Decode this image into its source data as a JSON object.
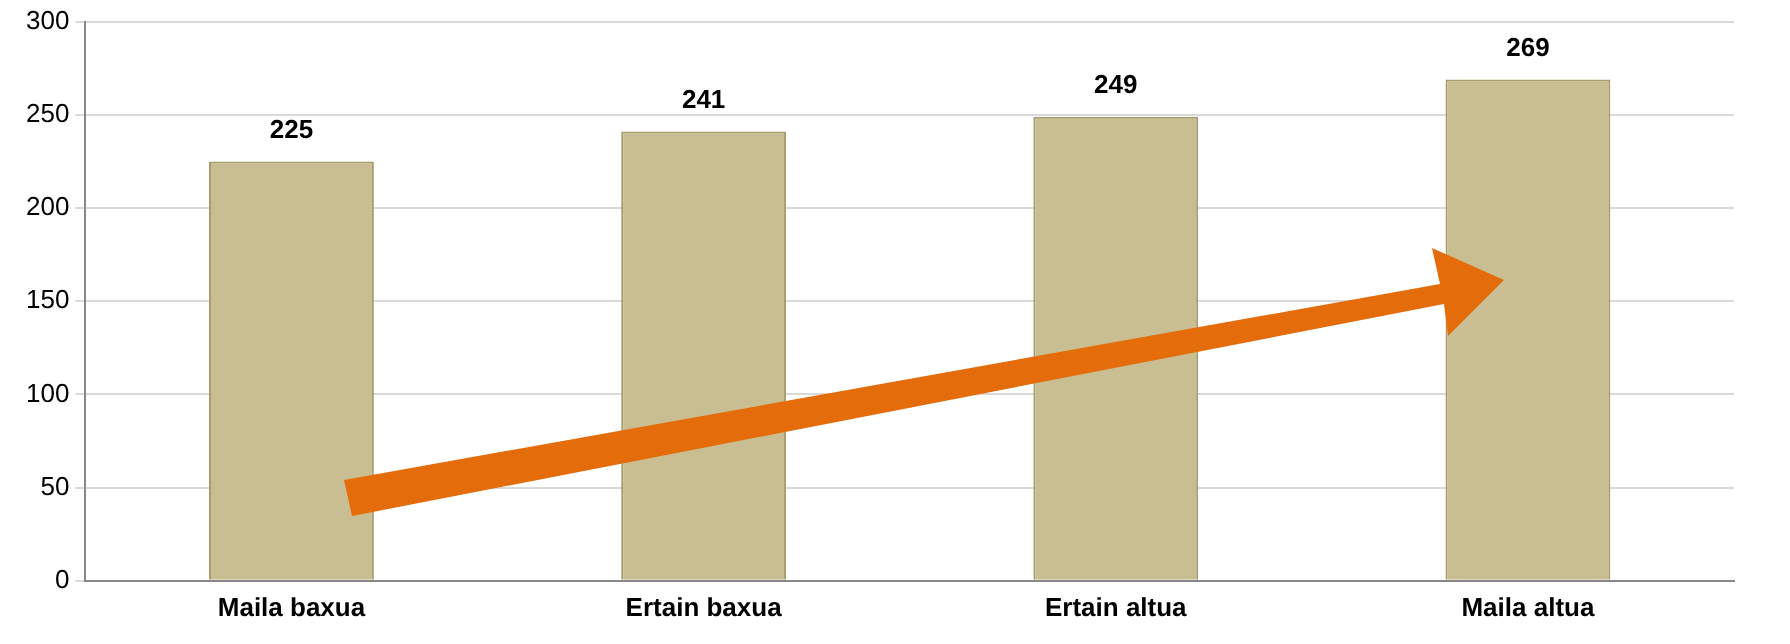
{
  "chart_data": {
    "type": "bar",
    "categories": [
      "Maila baxua",
      "Ertain baxua",
      "Ertain altua",
      "Maila altua"
    ],
    "values": [
      225,
      241,
      249,
      269
    ],
    "color": "#c9be92",
    "ylim": [
      0,
      300
    ],
    "yticks": [
      0,
      50,
      100,
      150,
      200,
      250,
      300
    ],
    "grid": "y",
    "legend": false,
    "data_labels": true
  }
}
